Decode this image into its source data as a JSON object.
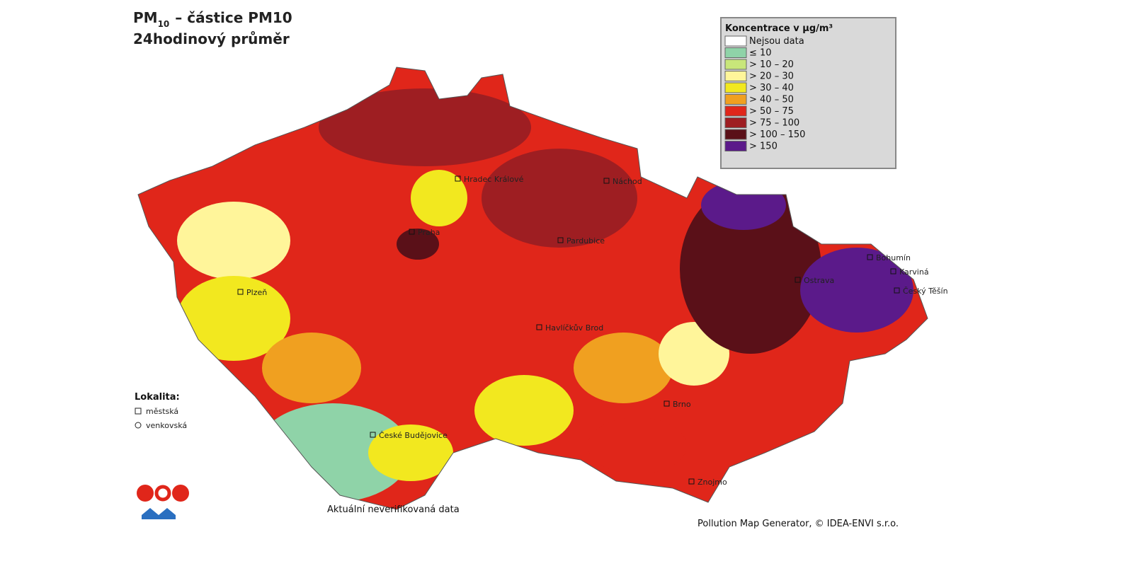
{
  "header": {
    "title_main": "PM",
    "title_subscript": "10",
    "title_tail": "– částice PM10",
    "subtitle": "24hodinový průměr"
  },
  "legend": {
    "title": "Koncentrace v µg/m³",
    "items": [
      {
        "label": "Nejsou data",
        "color": "#ffffff"
      },
      {
        "label": "≤ 10",
        "color": "#8fd3a8"
      },
      {
        "label": "> 10 – 20",
        "color": "#c8e67a"
      },
      {
        "label": "> 20 – 30",
        "color": "#fff59a"
      },
      {
        "label": "> 30 – 40",
        "color": "#f2e81f"
      },
      {
        "label": "> 40 – 50",
        "color": "#f0a020"
      },
      {
        "label": "> 50 – 75",
        "color": "#e0261a"
      },
      {
        "label": "> 75 – 100",
        "color": "#9e1e22"
      },
      {
        "label": "> 100 – 150",
        "color": "#5a1018"
      },
      {
        "label": "> 150",
        "color": "#5b1a8a"
      }
    ]
  },
  "locality": {
    "title": "Lokalita:",
    "urban": "městská",
    "rural": "venkovská"
  },
  "cities": [
    "Praha",
    "Ostrava",
    "Brno",
    "Plzeň",
    "Hradec Králové",
    "Pardubice",
    "Havlíčkův Brod",
    "České Budějovice",
    "Bohumín",
    "Karviná",
    "Český Těšín",
    "Náchod",
    "Znojmo"
  ],
  "footer": {
    "note": "Aktuální neverifikovaná data",
    "credit": "Pollution Map Generator, © IDEA-ENVI s.r.o."
  }
}
